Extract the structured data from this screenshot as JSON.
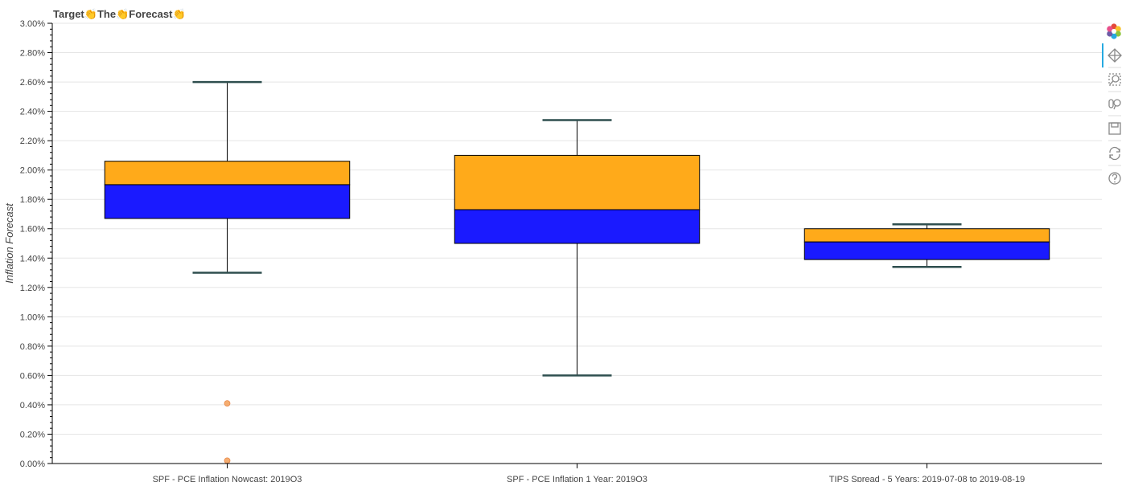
{
  "chart_data": {
    "type": "box",
    "title": "Target👏The👏Forecast👏",
    "ylabel": "Inflation Forecast",
    "xlabel": "",
    "ylim": [
      0,
      0.03
    ],
    "yticks": [
      "0.00%",
      "0.20%",
      "0.40%",
      "0.60%",
      "0.80%",
      "1.00%",
      "1.20%",
      "1.40%",
      "1.60%",
      "1.80%",
      "2.00%",
      "2.20%",
      "2.40%",
      "2.60%",
      "2.80%",
      "3.00%"
    ],
    "grid": true,
    "upper_box_color": "#FFAA1A",
    "lower_box_color": "#1A1AFF",
    "outlier_color": "#F4A460",
    "categories": [
      "SPF - PCE Inflation Nowcast: 2019Q3",
      "SPF - PCE Inflation 1 Year: 2019Q3",
      "TIPS Spread - 5 Years: 2019-07-08 to 2019-08-19"
    ],
    "boxes": [
      {
        "lower_whisker": 0.013,
        "q1": 0.0167,
        "median": 0.019,
        "q3": 0.0206,
        "upper_whisker": 0.026,
        "outliers": [
          0.0041,
          0.0002
        ]
      },
      {
        "lower_whisker": 0.006,
        "q1": 0.015,
        "median": 0.0173,
        "q3": 0.021,
        "upper_whisker": 0.0234,
        "outliers": []
      },
      {
        "lower_whisker": 0.0134,
        "q1": 0.0139,
        "median": 0.0151,
        "q3": 0.016,
        "upper_whisker": 0.0163,
        "outliers": []
      }
    ]
  },
  "toolbar": {
    "logo": "bokeh-logo-icon",
    "tools": [
      "pan-icon",
      "box-zoom-icon",
      "wheel-zoom-icon",
      "save-icon",
      "reset-icon",
      "help-icon"
    ],
    "accent_color": "#26AAE1"
  }
}
